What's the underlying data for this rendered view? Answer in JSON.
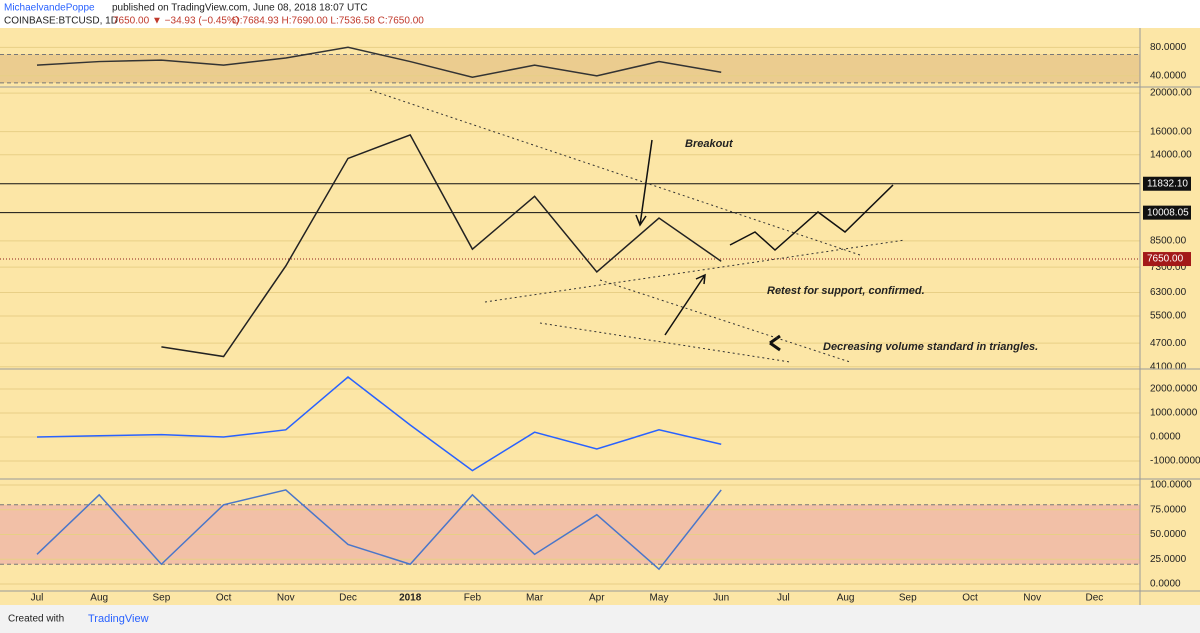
{
  "header": {
    "author": "MichaelvandePoppe",
    "published": "published on TradingView.com, June 08, 2018 18:07 UTC",
    "symbol": "COINBASE:BTCUSD, 1D",
    "last": "7650.00",
    "change": "▼ −34.93 (−0.45%)",
    "ohlc": "O:7684.93 H:7690.00 L:7536.58 C:7650.00"
  },
  "annotations": [
    "Breakout",
    "Retest for support, confirmed.",
    "Decreasing volume standard in triangles."
  ],
  "footer": {
    "created": "Created with",
    "brand": "TradingView"
  },
  "chart_data": [
    {
      "type": "line",
      "ylim": [
        25.7,
        104.3
      ],
      "band": [
        30,
        70
      ],
      "yticks": [
        {
          "value": 40,
          "label": "40.0000"
        },
        {
          "value": 80,
          "label": "80.0000"
        }
      ],
      "series": [
        {
          "color": "#333333",
          "values": [
            55,
            60,
            62,
            55,
            65,
            80,
            60,
            38,
            55,
            40,
            60,
            45,
            null,
            null,
            null,
            null,
            null,
            null
          ]
        }
      ]
    },
    {
      "type": "line",
      "log": true,
      "ylim": [
        4070,
        20600
      ],
      "categories": [
        "Jul",
        "Aug",
        "Sep",
        "Oct",
        "Nov",
        "Dec",
        "2018",
        "Feb",
        "Mar",
        "Apr",
        "May",
        "Jun",
        "Jul",
        "Aug",
        "Sep",
        "Oct",
        "Nov",
        "Dec"
      ],
      "yticks": [
        {
          "value": 4100,
          "label": "4100.00"
        },
        {
          "value": 4700,
          "label": "4700.00"
        },
        {
          "value": 5500,
          "label": "5500.00"
        },
        {
          "value": 6300,
          "label": "6300.00"
        },
        {
          "value": 7300,
          "label": "7300.00"
        },
        {
          "value": 8500,
          "label": "8500.00"
        },
        {
          "value": 14000,
          "label": "14000.00"
        },
        {
          "value": 16000,
          "label": "16000.00"
        },
        {
          "value": 20000,
          "label": "20000.00"
        }
      ],
      "levels": [
        {
          "value": 11832.1,
          "label": "11832.10"
        },
        {
          "value": 10008.05,
          "label": "10008.05"
        }
      ],
      "last_price": {
        "value": 7650,
        "label": "7650.00"
      },
      "series": [
        {
          "color": "#222222",
          "values": [
            null,
            null,
            4600,
            4350,
            7350,
            13700,
            15700,
            8100,
            11000,
            7100,
            9700,
            7550,
            null,
            null,
            null,
            null,
            null,
            null
          ]
        }
      ]
    },
    {
      "type": "line",
      "ylim": [
        -1708,
        2792
      ],
      "yticks": [
        {
          "value": -1000,
          "label": "-1000.0000"
        },
        {
          "value": 0,
          "label": "0.0000"
        },
        {
          "value": 1000,
          "label": "1000.0000"
        },
        {
          "value": 2000,
          "label": "2000.0000"
        }
      ],
      "series": [
        {
          "color": "#2962ff",
          "values": [
            0,
            50,
            100,
            0,
            300,
            2500,
            500,
            -1400,
            200,
            -500,
            300,
            -300,
            null,
            null,
            null,
            null,
            null,
            null
          ]
        }
      ]
    },
    {
      "type": "line",
      "ylim": [
        -6,
        105
      ],
      "band": [
        20,
        80
      ],
      "yticks": [
        {
          "value": 0,
          "label": "0.0000"
        },
        {
          "value": 25,
          "label": "25.0000"
        },
        {
          "value": 50,
          "label": "50.0000"
        },
        {
          "value": 75,
          "label": "75.0000"
        },
        {
          "value": 100,
          "label": "100.0000"
        }
      ],
      "series": [
        {
          "color": "#4a76c9",
          "values": [
            30,
            90,
            20,
            80,
            95,
            40,
            20,
            90,
            30,
            70,
            15,
            95,
            null,
            null,
            null,
            null,
            null,
            null
          ]
        }
      ]
    }
  ]
}
